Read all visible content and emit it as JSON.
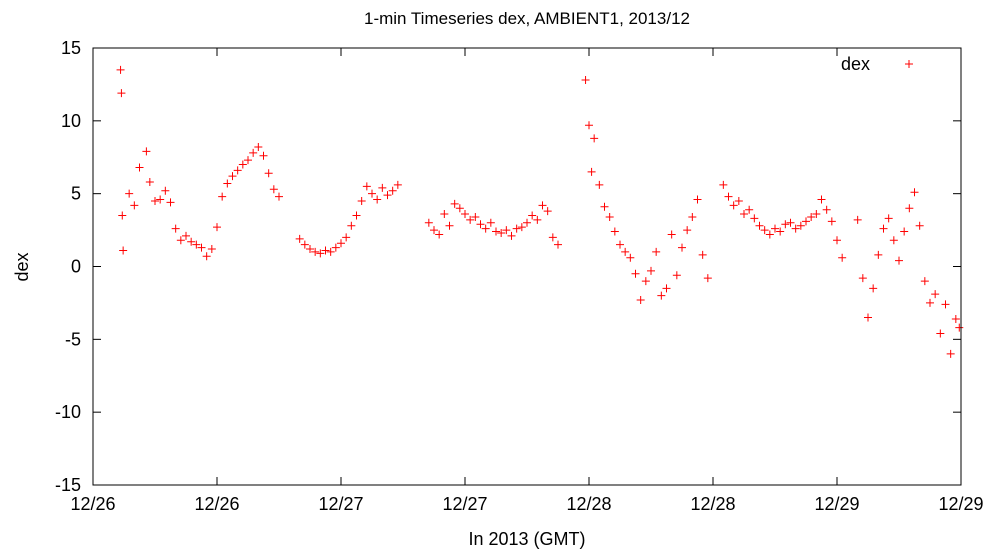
{
  "chart_data": {
    "type": "scatter",
    "title": "1-min Timeseries dex, AMBIENT1, 2013/12",
    "xlabel": "In 2013 (GMT)",
    "ylabel": "dex",
    "xlim": [
      "2013-12-26T00:00",
      "2013-12-29T12:00"
    ],
    "ylim": [
      -15,
      15
    ],
    "yticks": [
      -15,
      -10,
      -5,
      0,
      5,
      10,
      15
    ],
    "xticks": [
      {
        "x": "2013-12-26T00:00",
        "label": "12/26"
      },
      {
        "x": "2013-12-26T12:00",
        "label": "12/26"
      },
      {
        "x": "2013-12-27T00:00",
        "label": "12/27"
      },
      {
        "x": "2013-12-27T12:00",
        "label": "12/27"
      },
      {
        "x": "2013-12-28T00:00",
        "label": "12/28"
      },
      {
        "x": "2013-12-28T12:00",
        "label": "12/28"
      },
      {
        "x": "2013-12-29T00:00",
        "label": "12/29"
      },
      {
        "x": "2013-12-29T12:00",
        "label": "12/29"
      }
    ],
    "legend": {
      "position": "top-right"
    },
    "grid": false,
    "series": [
      {
        "name": "dex",
        "color": "#ff0000",
        "marker": "plus",
        "points": [
          [
            "2013-12-26T02:40",
            13.5
          ],
          [
            "2013-12-26T02:45",
            11.9
          ],
          [
            "2013-12-26T02:50",
            3.5
          ],
          [
            "2013-12-26T02:55",
            1.1
          ],
          [
            "2013-12-26T03:30",
            5.0
          ],
          [
            "2013-12-26T04:00",
            4.2
          ],
          [
            "2013-12-26T04:30",
            6.8
          ],
          [
            "2013-12-26T05:10",
            7.9
          ],
          [
            "2013-12-26T05:30",
            5.8
          ],
          [
            "2013-12-26T06:00",
            4.5
          ],
          [
            "2013-12-26T06:30",
            4.6
          ],
          [
            "2013-12-26T07:00",
            5.2
          ],
          [
            "2013-12-26T07:30",
            4.4
          ],
          [
            "2013-12-26T08:00",
            2.6
          ],
          [
            "2013-12-26T08:30",
            1.8
          ],
          [
            "2013-12-26T09:00",
            2.1
          ],
          [
            "2013-12-26T09:30",
            1.7
          ],
          [
            "2013-12-26T10:00",
            1.5
          ],
          [
            "2013-12-26T10:30",
            1.3
          ],
          [
            "2013-12-26T11:00",
            0.7
          ],
          [
            "2013-12-26T11:30",
            1.2
          ],
          [
            "2013-12-26T12:00",
            2.7
          ],
          [
            "2013-12-26T12:30",
            4.8
          ],
          [
            "2013-12-26T13:00",
            5.7
          ],
          [
            "2013-12-26T13:30",
            6.2
          ],
          [
            "2013-12-26T14:00",
            6.6
          ],
          [
            "2013-12-26T14:30",
            7.0
          ],
          [
            "2013-12-26T15:00",
            7.3
          ],
          [
            "2013-12-26T15:30",
            7.8
          ],
          [
            "2013-12-26T16:00",
            8.2
          ],
          [
            "2013-12-26T16:30",
            7.6
          ],
          [
            "2013-12-26T17:00",
            6.4
          ],
          [
            "2013-12-26T17:30",
            5.3
          ],
          [
            "2013-12-26T18:00",
            4.8
          ],
          [
            "2013-12-26T20:00",
            1.9
          ],
          [
            "2013-12-26T20:30",
            1.5
          ],
          [
            "2013-12-26T21:00",
            1.2
          ],
          [
            "2013-12-26T21:30",
            1.0
          ],
          [
            "2013-12-26T22:00",
            0.9
          ],
          [
            "2013-12-26T22:30",
            1.1
          ],
          [
            "2013-12-26T23:00",
            1.0
          ],
          [
            "2013-12-26T23:30",
            1.3
          ],
          [
            "2013-12-27T00:00",
            1.6
          ],
          [
            "2013-12-27T00:30",
            2.0
          ],
          [
            "2013-12-27T01:00",
            2.8
          ],
          [
            "2013-12-27T01:30",
            3.5
          ],
          [
            "2013-12-27T02:00",
            4.5
          ],
          [
            "2013-12-27T02:30",
            5.5
          ],
          [
            "2013-12-27T03:00",
            5.0
          ],
          [
            "2013-12-27T03:30",
            4.6
          ],
          [
            "2013-12-27T04:00",
            5.4
          ],
          [
            "2013-12-27T04:30",
            4.9
          ],
          [
            "2013-12-27T05:00",
            5.2
          ],
          [
            "2013-12-27T05:30",
            5.6
          ],
          [
            "2013-12-27T08:30",
            3.0
          ],
          [
            "2013-12-27T09:00",
            2.5
          ],
          [
            "2013-12-27T09:30",
            2.2
          ],
          [
            "2013-12-27T10:00",
            3.6
          ],
          [
            "2013-12-27T10:30",
            2.8
          ],
          [
            "2013-12-27T11:00",
            4.3
          ],
          [
            "2013-12-27T11:30",
            4.0
          ],
          [
            "2013-12-27T12:00",
            3.6
          ],
          [
            "2013-12-27T12:30",
            3.2
          ],
          [
            "2013-12-27T13:00",
            3.4
          ],
          [
            "2013-12-27T13:30",
            2.9
          ],
          [
            "2013-12-27T14:00",
            2.6
          ],
          [
            "2013-12-27T14:30",
            3.0
          ],
          [
            "2013-12-27T15:00",
            2.4
          ],
          [
            "2013-12-27T15:30",
            2.3
          ],
          [
            "2013-12-27T16:00",
            2.5
          ],
          [
            "2013-12-27T16:30",
            2.1
          ],
          [
            "2013-12-27T17:00",
            2.6
          ],
          [
            "2013-12-27T17:30",
            2.7
          ],
          [
            "2013-12-27T18:00",
            3.0
          ],
          [
            "2013-12-27T18:30",
            3.5
          ],
          [
            "2013-12-27T19:00",
            3.2
          ],
          [
            "2013-12-27T19:30",
            4.2
          ],
          [
            "2013-12-27T20:00",
            3.8
          ],
          [
            "2013-12-27T20:30",
            2.0
          ],
          [
            "2013-12-27T21:00",
            1.5
          ],
          [
            "2013-12-27T23:40",
            12.8
          ],
          [
            "2013-12-28T00:00",
            9.7
          ],
          [
            "2013-12-28T00:15",
            6.5
          ],
          [
            "2013-12-28T00:30",
            8.8
          ],
          [
            "2013-12-28T01:00",
            5.6
          ],
          [
            "2013-12-28T01:30",
            4.1
          ],
          [
            "2013-12-28T02:00",
            3.4
          ],
          [
            "2013-12-28T02:30",
            2.4
          ],
          [
            "2013-12-28T03:00",
            1.5
          ],
          [
            "2013-12-28T03:30",
            1.0
          ],
          [
            "2013-12-28T04:00",
            0.6
          ],
          [
            "2013-12-28T04:30",
            -0.5
          ],
          [
            "2013-12-28T05:00",
            -2.3
          ],
          [
            "2013-12-28T05:30",
            -1.0
          ],
          [
            "2013-12-28T06:00",
            -0.3
          ],
          [
            "2013-12-28T06:30",
            1.0
          ],
          [
            "2013-12-28T07:00",
            -2.0
          ],
          [
            "2013-12-28T07:30",
            -1.5
          ],
          [
            "2013-12-28T08:00",
            2.2
          ],
          [
            "2013-12-28T08:30",
            -0.6
          ],
          [
            "2013-12-28T09:00",
            1.3
          ],
          [
            "2013-12-28T09:30",
            2.5
          ],
          [
            "2013-12-28T10:00",
            3.4
          ],
          [
            "2013-12-28T10:30",
            4.6
          ],
          [
            "2013-12-28T11:00",
            0.8
          ],
          [
            "2013-12-28T11:30",
            -0.8
          ],
          [
            "2013-12-28T13:00",
            5.6
          ],
          [
            "2013-12-28T13:30",
            4.8
          ],
          [
            "2013-12-28T14:00",
            4.2
          ],
          [
            "2013-12-28T14:30",
            4.5
          ],
          [
            "2013-12-28T15:00",
            3.6
          ],
          [
            "2013-12-28T15:30",
            3.9
          ],
          [
            "2013-12-28T16:00",
            3.3
          ],
          [
            "2013-12-28T16:30",
            2.8
          ],
          [
            "2013-12-28T17:00",
            2.5
          ],
          [
            "2013-12-28T17:30",
            2.2
          ],
          [
            "2013-12-28T18:00",
            2.6
          ],
          [
            "2013-12-28T18:30",
            2.4
          ],
          [
            "2013-12-28T19:00",
            2.9
          ],
          [
            "2013-12-28T19:30",
            3.0
          ],
          [
            "2013-12-28T20:00",
            2.6
          ],
          [
            "2013-12-28T20:30",
            2.8
          ],
          [
            "2013-12-28T21:00",
            3.1
          ],
          [
            "2013-12-28T21:30",
            3.4
          ],
          [
            "2013-12-28T22:00",
            3.6
          ],
          [
            "2013-12-28T22:30",
            4.6
          ],
          [
            "2013-12-28T23:00",
            3.9
          ],
          [
            "2013-12-28T23:30",
            3.1
          ],
          [
            "2013-12-29T00:00",
            1.8
          ],
          [
            "2013-12-29T00:30",
            0.6
          ],
          [
            "2013-12-29T02:00",
            3.2
          ],
          [
            "2013-12-29T02:30",
            -0.8
          ],
          [
            "2013-12-29T03:00",
            -3.5
          ],
          [
            "2013-12-29T03:30",
            -1.5
          ],
          [
            "2013-12-29T04:00",
            0.8
          ],
          [
            "2013-12-29T04:30",
            2.6
          ],
          [
            "2013-12-29T05:00",
            3.3
          ],
          [
            "2013-12-29T05:30",
            1.8
          ],
          [
            "2013-12-29T06:00",
            0.4
          ],
          [
            "2013-12-29T06:30",
            2.4
          ],
          [
            "2013-12-29T07:00",
            4.0
          ],
          [
            "2013-12-29T07:30",
            5.1
          ],
          [
            "2013-12-29T08:00",
            2.8
          ],
          [
            "2013-12-29T08:30",
            -1.0
          ],
          [
            "2013-12-29T09:00",
            -2.5
          ],
          [
            "2013-12-29T09:30",
            -1.9
          ],
          [
            "2013-12-29T10:00",
            -4.6
          ],
          [
            "2013-12-29T10:30",
            -2.6
          ],
          [
            "2013-12-29T11:00",
            -6.0
          ],
          [
            "2013-12-29T11:30",
            -3.6
          ],
          [
            "2013-12-29T11:50",
            -4.2
          ]
        ]
      }
    ]
  }
}
